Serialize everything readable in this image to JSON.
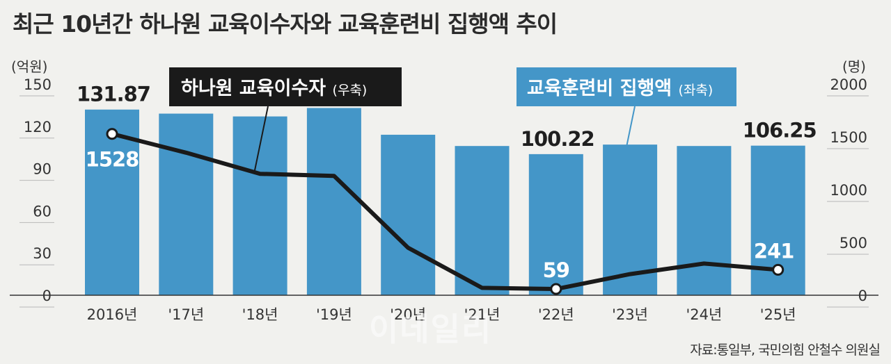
{
  "header": {
    "title": "최근 10년간 하나원 교육이수자와 교육훈련비 집행액 추이"
  },
  "chart_data": {
    "type": "bar+line",
    "categories": [
      "2016년",
      "'17년",
      "'18년",
      "'19년",
      "'20년",
      "'21년",
      "'22년",
      "'23년",
      "'24년",
      "'25년"
    ],
    "left_axis": {
      "unit": "(억원)",
      "ticks": [
        0,
        30,
        60,
        90,
        120,
        150
      ],
      "ylim": [
        0,
        150
      ]
    },
    "right_axis": {
      "unit": "(명)",
      "ticks": [
        0,
        500,
        1000,
        1500,
        2000
      ],
      "ylim": [
        0,
        2000
      ]
    },
    "series": [
      {
        "name": "교육훈련비 집행액",
        "axis_note": "(좌축)",
        "type": "bar",
        "color": "#4496c8",
        "values": [
          131.87,
          129,
          127,
          133,
          114,
          106,
          100.22,
          107,
          106,
          106.25
        ]
      },
      {
        "name": "하나원 교육이수자",
        "axis_note": "(우축)",
        "type": "line",
        "color": "#1a1a1a",
        "values": [
          1528,
          1350,
          1150,
          1130,
          450,
          70,
          59,
          200,
          300,
          241
        ]
      }
    ],
    "bar_labels": [
      {
        "index": 0,
        "text": "131.87"
      },
      {
        "index": 6,
        "text": "100.22"
      },
      {
        "index": 9,
        "text": "106.25"
      }
    ],
    "line_labels": [
      {
        "index": 0,
        "text": "1528"
      },
      {
        "index": 6,
        "text": "59"
      },
      {
        "index": 9,
        "text": "241"
      }
    ],
    "grid": true
  },
  "footer": {
    "source": "자료:통일부, 국민의힘 안철수 의원실"
  },
  "watermark": "이데일리"
}
